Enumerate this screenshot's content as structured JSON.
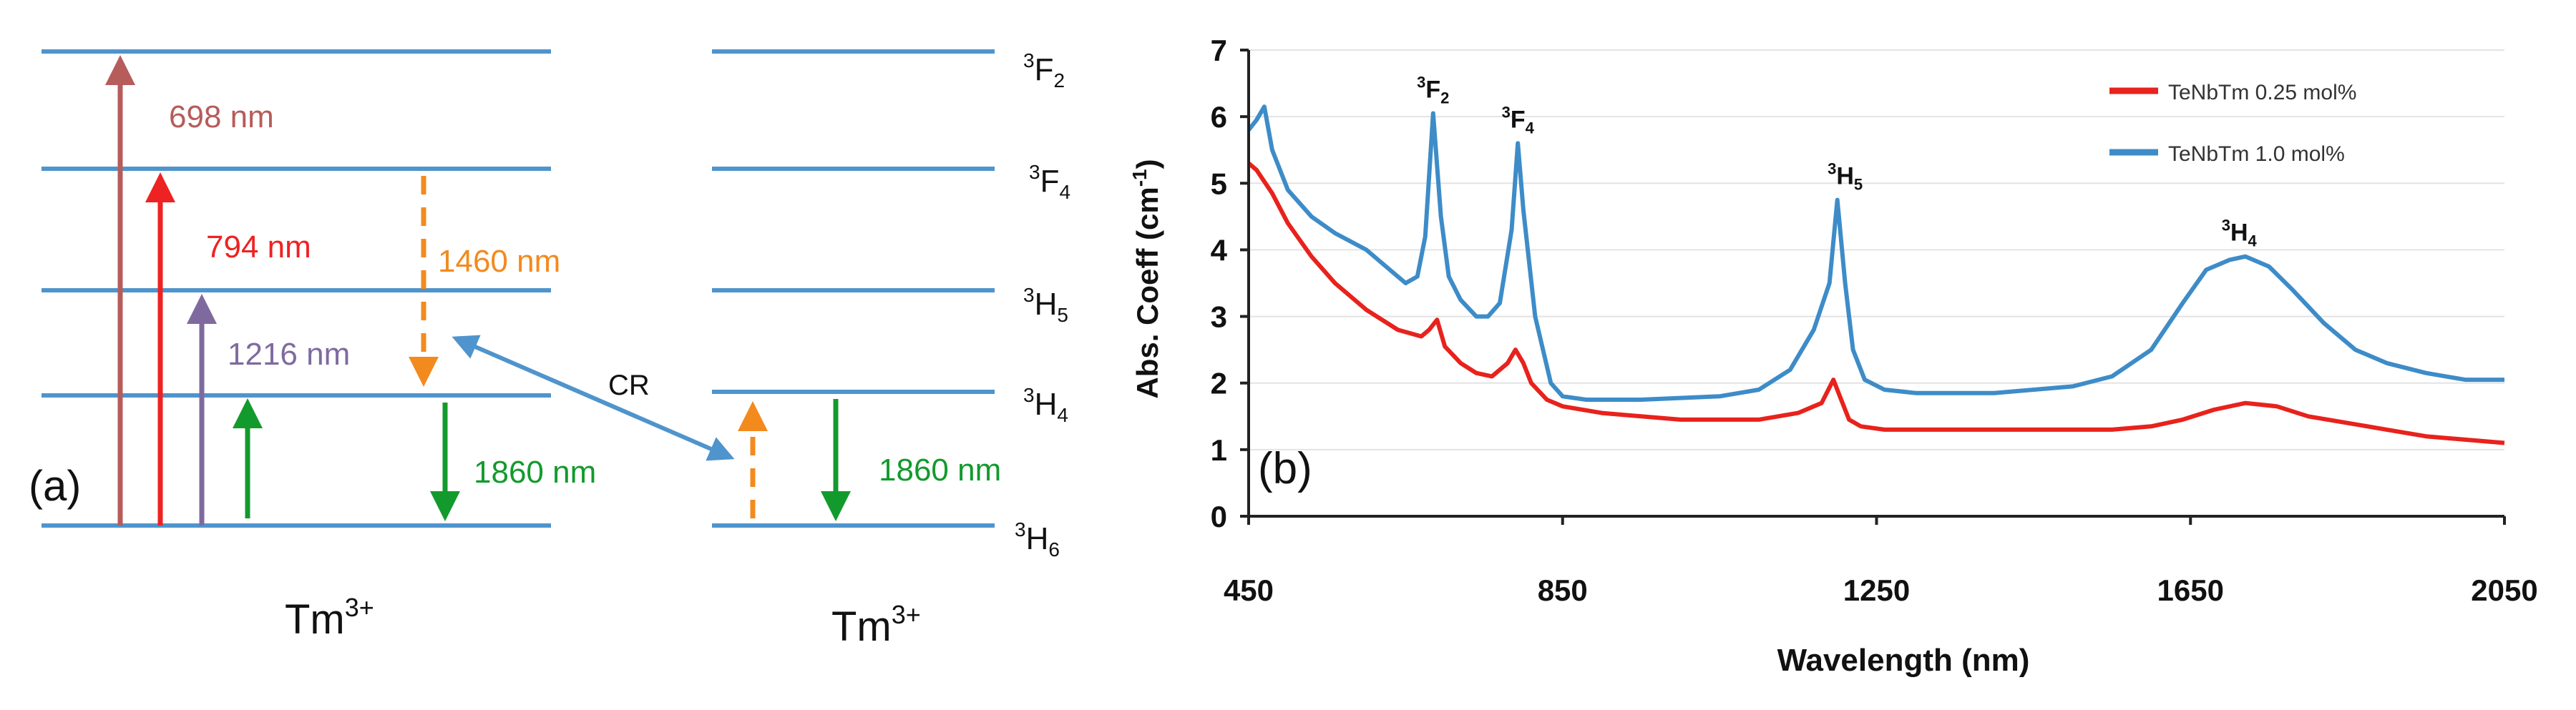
{
  "panel_a": {
    "label": "(a)",
    "ion_left": {
      "base": "Tm",
      "sup": "3+"
    },
    "ion_right": {
      "base": "Tm",
      "sup": "3+"
    },
    "levels": [
      {
        "sup": "3",
        "base": "F",
        "sub": "2"
      },
      {
        "sup": "3",
        "base": "F",
        "sub": "4"
      },
      {
        "sup": "3",
        "base": "H",
        "sub": "5"
      },
      {
        "sup": "3",
        "base": "H",
        "sub": "4"
      },
      {
        "sup": "3",
        "base": "H",
        "sub": "6"
      }
    ],
    "transitions": [
      {
        "label": "698 nm",
        "color": "#b65c5a"
      },
      {
        "label": "794 nm",
        "color": "#ee2222"
      },
      {
        "label": "1216 nm",
        "color": "#7f6aa0"
      },
      {
        "label": "",
        "color": "#139a2d"
      },
      {
        "label": "1460 nm",
        "color": "#f38a1e"
      },
      {
        "label": "1860 nm",
        "color": "#139a2d"
      },
      {
        "label": "",
        "color": "#f38a1e"
      },
      {
        "label": "1860 nm",
        "color": "#139a2d"
      }
    ],
    "cr_label": "CR",
    "cr_color": "#4f94cd"
  },
  "chart_data": {
    "type": "line",
    "panel_label": "(b)",
    "xlabel": "Wavelength (nm)",
    "ylabel": {
      "base": "Abs. Coeff (cm",
      "sup": "-1",
      "tail": ")"
    },
    "xlim": [
      450,
      2050
    ],
    "ylim": [
      0,
      7
    ],
    "xticks": [
      450,
      850,
      1250,
      1650,
      2050
    ],
    "yticks": [
      0,
      1,
      2,
      3,
      4,
      5,
      6,
      7
    ],
    "grid": "horizontal",
    "legend": "top-right",
    "peak_labels": [
      {
        "sup": "3",
        "base": "F",
        "sub": "2",
        "x": 685,
        "y": 6.05
      },
      {
        "sup": "3",
        "base": "F",
        "sub": "4",
        "x": 793,
        "y": 5.6
      },
      {
        "sup": "3",
        "base": "H",
        "sub": "5",
        "x": 1210,
        "y": 4.75
      },
      {
        "sup": "3",
        "base": "H",
        "sub": "4",
        "x": 1712,
        "y": 3.9
      }
    ],
    "series": [
      {
        "name": "TeNbTm 0.25 mol%",
        "color": "#e8221c",
        "x": [
          450,
          460,
          480,
          500,
          530,
          560,
          600,
          640,
          670,
          680,
          690,
          700,
          720,
          740,
          760,
          780,
          790,
          800,
          810,
          830,
          850,
          900,
          1000,
          1100,
          1150,
          1180,
          1195,
          1205,
          1215,
          1230,
          1260,
          1300,
          1400,
          1500,
          1550,
          1600,
          1640,
          1680,
          1720,
          1760,
          1800,
          1850,
          1900,
          1950,
          2000,
          2050
        ],
        "y": [
          5.3,
          5.2,
          4.85,
          4.4,
          3.9,
          3.5,
          3.1,
          2.8,
          2.7,
          2.8,
          2.95,
          2.55,
          2.3,
          2.15,
          2.1,
          2.3,
          2.5,
          2.3,
          2.0,
          1.75,
          1.65,
          1.55,
          1.45,
          1.45,
          1.55,
          1.7,
          2.05,
          1.75,
          1.45,
          1.35,
          1.3,
          1.3,
          1.3,
          1.3,
          1.3,
          1.35,
          1.45,
          1.6,
          1.7,
          1.65,
          1.5,
          1.4,
          1.3,
          1.2,
          1.15,
          1.1
        ]
      },
      {
        "name": "TeNbTm 1.0 mol%",
        "color": "#3d8cc8",
        "x": [
          450,
          460,
          470,
          480,
          500,
          530,
          560,
          600,
          630,
          650,
          665,
          675,
          685,
          695,
          705,
          720,
          740,
          755,
          770,
          785,
          793,
          800,
          815,
          835,
          850,
          880,
          950,
          1050,
          1100,
          1140,
          1170,
          1190,
          1200,
          1210,
          1220,
          1235,
          1260,
          1300,
          1400,
          1500,
          1550,
          1600,
          1640,
          1670,
          1700,
          1720,
          1750,
          1780,
          1820,
          1860,
          1900,
          1950,
          2000,
          2050
        ],
        "y": [
          5.8,
          5.95,
          6.15,
          5.5,
          4.9,
          4.5,
          4.25,
          4.0,
          3.7,
          3.5,
          3.6,
          4.2,
          6.05,
          4.5,
          3.6,
          3.25,
          3.0,
          3.0,
          3.2,
          4.3,
          5.6,
          4.6,
          3.0,
          2.0,
          1.8,
          1.75,
          1.75,
          1.8,
          1.9,
          2.2,
          2.8,
          3.5,
          4.75,
          3.5,
          2.5,
          2.05,
          1.9,
          1.85,
          1.85,
          1.95,
          2.1,
          2.5,
          3.2,
          3.7,
          3.85,
          3.9,
          3.75,
          3.4,
          2.9,
          2.5,
          2.3,
          2.15,
          2.05,
          2.05
        ]
      }
    ]
  }
}
